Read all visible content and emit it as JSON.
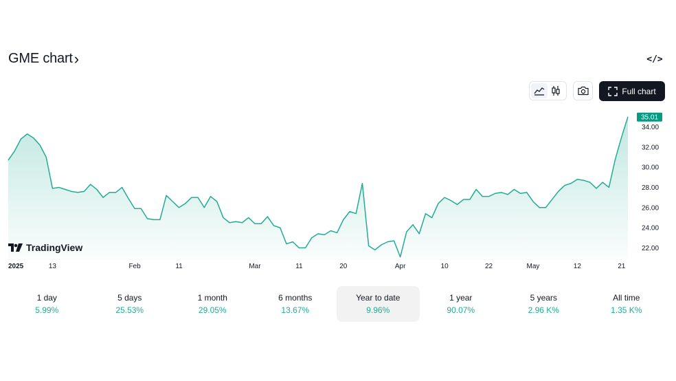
{
  "header": {
    "title": "GME chart",
    "title_chevron": "›",
    "embed_label": "</>"
  },
  "toolbar": {
    "full_chart_label": "Full chart",
    "chart_types": [
      {
        "icon": "area-chart-icon",
        "active": true
      },
      {
        "icon": "candles-icon",
        "active": false
      }
    ],
    "snapshot_icon": "camera-icon"
  },
  "brand": {
    "logo_text": "TradingView"
  },
  "colors": {
    "line": "#22ab94",
    "price_tag_bg": "#089981",
    "text": "#131722"
  },
  "chart_data": {
    "type": "area",
    "symbol": "GME",
    "last_price_label": "35.01",
    "y_ticks": [
      "22.00",
      "24.00",
      "26.00",
      "28.00",
      "30.00",
      "32.00",
      "34.00"
    ],
    "y_tick_values": [
      22,
      24,
      26,
      28,
      30,
      32,
      34
    ],
    "ylim": [
      20.8,
      35.4
    ],
    "x_tick_labels": [
      {
        "label": "2025",
        "index": 0,
        "bold": true
      },
      {
        "label": "13",
        "index": 7
      },
      {
        "label": "Feb",
        "index": 20
      },
      {
        "label": "11",
        "index": 27
      },
      {
        "label": "Mar",
        "index": 39
      },
      {
        "label": "11",
        "index": 46
      },
      {
        "label": "20",
        "index": 53
      },
      {
        "label": "Apr",
        "index": 62
      },
      {
        "label": "10",
        "index": 69
      },
      {
        "label": "22",
        "index": 76
      },
      {
        "label": "May",
        "index": 83
      },
      {
        "label": "12",
        "index": 90
      },
      {
        "label": "21",
        "index": 97
      }
    ],
    "grid": false,
    "values": [
      30.7,
      31.6,
      32.8,
      33.3,
      32.9,
      32.2,
      31.0,
      27.9,
      28.0,
      27.8,
      27.6,
      27.5,
      27.6,
      28.3,
      27.8,
      27.0,
      27.5,
      27.5,
      28.0,
      26.9,
      25.9,
      25.9,
      24.9,
      24.8,
      24.8,
      27.2,
      26.6,
      26.0,
      26.4,
      27.0,
      27.0,
      26.0,
      27.1,
      26.6,
      25.0,
      24.5,
      24.6,
      24.5,
      25.0,
      24.4,
      24.4,
      25.1,
      24.2,
      24.0,
      22.4,
      22.6,
      22.0,
      22.0,
      23.0,
      23.4,
      23.3,
      23.7,
      23.5,
      24.8,
      25.6,
      25.4,
      28.4,
      22.2,
      21.8,
      22.3,
      22.6,
      22.7,
      21.1,
      23.6,
      24.3,
      23.4,
      25.4,
      25.0,
      26.4,
      27.0,
      26.7,
      26.3,
      26.8,
      26.8,
      27.8,
      27.1,
      27.1,
      27.4,
      27.5,
      27.3,
      27.8,
      27.4,
      27.5,
      26.6,
      26.0,
      26.0,
      26.8,
      27.6,
      28.2,
      28.4,
      28.8,
      28.7,
      28.5,
      27.9,
      28.5,
      28.0,
      30.8,
      33.0,
      35.01
    ]
  },
  "periods": [
    {
      "label": "1 day",
      "change": "5.99%",
      "selected": false
    },
    {
      "label": "5 days",
      "change": "25.53%",
      "selected": false
    },
    {
      "label": "1 month",
      "change": "29.05%",
      "selected": false
    },
    {
      "label": "6 months",
      "change": "13.67%",
      "selected": false
    },
    {
      "label": "Year to date",
      "change": "9.96%",
      "selected": true
    },
    {
      "label": "1 year",
      "change": "90.07%",
      "selected": false
    },
    {
      "label": "5 years",
      "change": "2.96 K%",
      "selected": false
    },
    {
      "label": "All time",
      "change": "1.35 K%",
      "selected": false
    }
  ]
}
